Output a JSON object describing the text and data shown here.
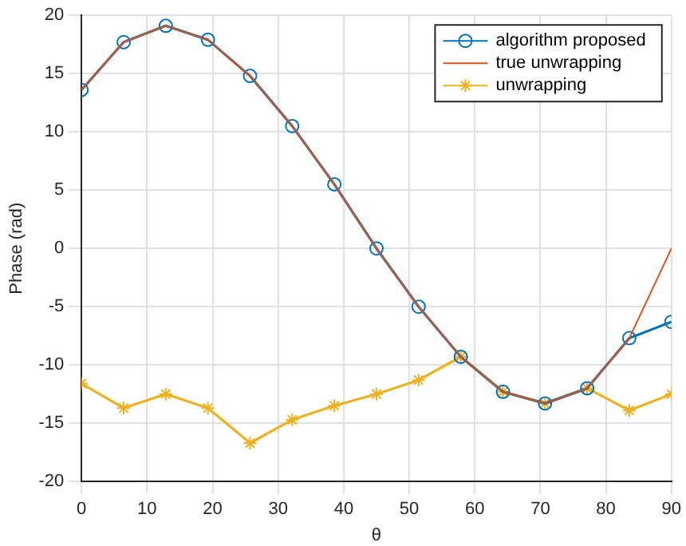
{
  "chart_data": {
    "type": "line",
    "xlabel": "θ",
    "ylabel": "Phase (rad)",
    "x": [
      0,
      6.43,
      12.86,
      19.29,
      25.71,
      32.14,
      38.57,
      45,
      51.43,
      57.86,
      64.29,
      70.71,
      77.14,
      83.57,
      90
    ],
    "series": [
      {
        "name": "algorithm proposed",
        "color": "#0072bd",
        "marker": "circle",
        "values": [
          13.6,
          17.7,
          19.1,
          17.9,
          14.8,
          10.5,
          5.5,
          0,
          -5,
          -9.3,
          -12.3,
          -13.3,
          -12,
          -7.7,
          -6.3
        ]
      },
      {
        "name": "true unwrapping",
        "color": "#d95319",
        "marker": "none",
        "values": [
          13.6,
          17.7,
          19.1,
          17.9,
          14.8,
          10.5,
          5.5,
          0,
          -5,
          -9.3,
          -12.3,
          -13.3,
          -12,
          -7.7,
          0
        ]
      },
      {
        "name": "unwrapping",
        "color": "#edb120",
        "marker": "cross",
        "values": [
          -11.6,
          -13.7,
          -12.5,
          -13.7,
          -16.7,
          -14.7,
          -13.5,
          -12.5,
          -11.3,
          -9.3,
          -12.3,
          -13.3,
          -12,
          -13.9,
          -12.5
        ]
      }
    ],
    "xlim": [
      0,
      90
    ],
    "xticks": [
      0,
      10,
      20,
      30,
      40,
      50,
      60,
      70,
      80,
      90
    ],
    "ylim": [
      -20,
      20
    ],
    "yticks": [
      -20,
      -15,
      -10,
      -5,
      0,
      5,
      10,
      15,
      20
    ],
    "grid": true,
    "legend": "top right",
    "line_style": "solid"
  }
}
